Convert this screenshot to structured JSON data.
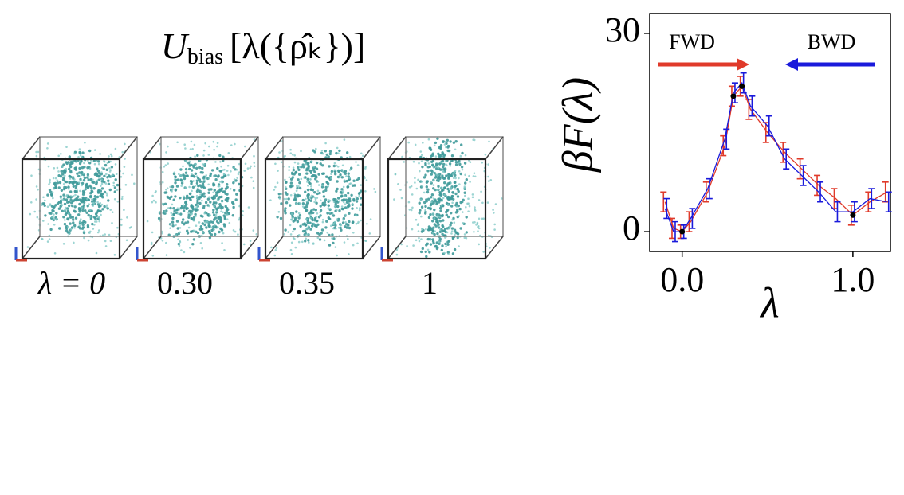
{
  "formula": {
    "symbol": "U",
    "subscript": "bias",
    "argument": "[λ({ρ̂ₖ})]"
  },
  "panels": [
    {
      "label": "λ = 0"
    },
    {
      "label": "0.30"
    },
    {
      "label": "0.35"
    },
    {
      "label": "1"
    }
  ],
  "chart_data": {
    "type": "line",
    "xlabel": "λ",
    "ylabel": "βF(λ)",
    "xlim": [
      -0.19,
      1.22
    ],
    "ylim": [
      -3,
      33
    ],
    "xticks": [
      {
        "value": 0,
        "label": "0.0"
      },
      {
        "value": 1,
        "label": "1.0"
      }
    ],
    "yticks": [
      0,
      30
    ],
    "x": [
      -0.1,
      -0.05,
      0,
      0.05,
      0.15,
      0.25,
      0.3,
      0.35,
      0.4,
      0.5,
      0.6,
      0.7,
      0.8,
      0.9,
      1.0,
      1.1,
      1.2
    ],
    "series": [
      {
        "name": "FWD",
        "color": "#e03a2a",
        "values": [
          4.5,
          0.5,
          0,
          1.5,
          6,
          13,
          20.5,
          22,
          18.5,
          15,
          12,
          9.5,
          7,
          5,
          2.5,
          4.5,
          6
        ],
        "errors": [
          1.5,
          1.5,
          1,
          1.5,
          1.5,
          1.5,
          1.5,
          1.5,
          1.5,
          1.5,
          1.5,
          1.5,
          1.5,
          1.5,
          1.5,
          1.5,
          1.5
        ]
      },
      {
        "name": "BWD",
        "color": "#1a1adb",
        "values": [
          3.5,
          0,
          0,
          2,
          6.5,
          14,
          21,
          22.5,
          19,
          16,
          11,
          8.5,
          6,
          3,
          3,
          5,
          4.5
        ],
        "errors": [
          1.5,
          1.5,
          1,
          1.5,
          1.5,
          1.5,
          1.5,
          1.5,
          1.5,
          1.5,
          1.5,
          1.5,
          1.5,
          1.5,
          1.5,
          1.5,
          1.5
        ]
      }
    ],
    "markers": {
      "color": "#000000",
      "x": [
        0,
        0.3,
        0.35,
        1.0
      ],
      "values": [
        0,
        20.5,
        22,
        2.5
      ]
    }
  }
}
